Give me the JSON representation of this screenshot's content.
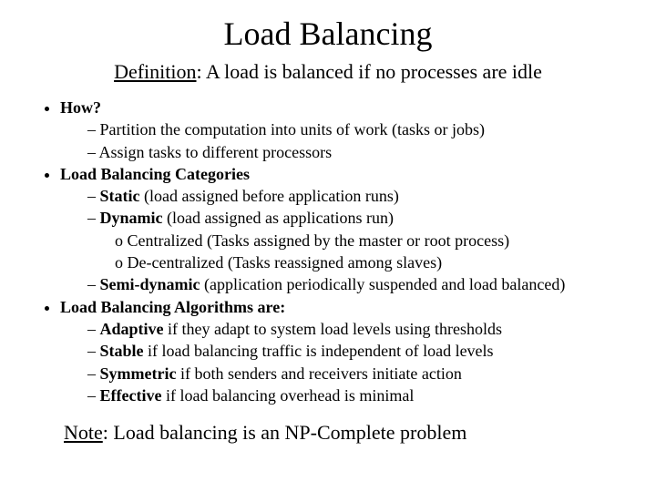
{
  "title": "Load Balancing",
  "definition_label": "Definition",
  "definition_text": ": A load is balanced if no processes are idle",
  "b1": {
    "head": "How?",
    "i1": "Partition the computation into units of work (tasks or jobs)",
    "i2": "Assign tasks to different processors"
  },
  "b2": {
    "head": "Load Balancing Categories",
    "i1": {
      "strong": "Static",
      "rest": " (load assigned before application runs)"
    },
    "i2": {
      "strong": "Dynamic",
      "rest": " (load assigned as applications run)",
      "s1": "Centralized (Tasks assigned by the master or root process)",
      "s2": "De-centralized (Tasks reassigned among slaves)"
    },
    "i3": {
      "strong": "Semi-dynamic",
      "rest": " (application periodically suspended and load balanced)"
    }
  },
  "b3": {
    "head": "Load Balancing Algorithms are:",
    "i1": {
      "strong": "Adaptive",
      "rest": " if they adapt to system load levels using thresholds"
    },
    "i2": {
      "strong": "Stable",
      "rest": " if load balancing traffic is independent of load levels"
    },
    "i3": {
      "strong": "Symmetric",
      "rest": " if both senders and receivers initiate action"
    },
    "i4": {
      "strong": "Effective",
      "rest": " if load balancing overhead is minimal"
    }
  },
  "note_label": "Note",
  "note_text": ": Load balancing is an NP-Complete problem",
  "style": {
    "background": "#ffffff",
    "text_color": "#000000",
    "title_fontsize": 36,
    "def_fontsize": 22,
    "body_fontsize": 18,
    "note_fontsize": 22,
    "font_family": "Times New Roman"
  }
}
